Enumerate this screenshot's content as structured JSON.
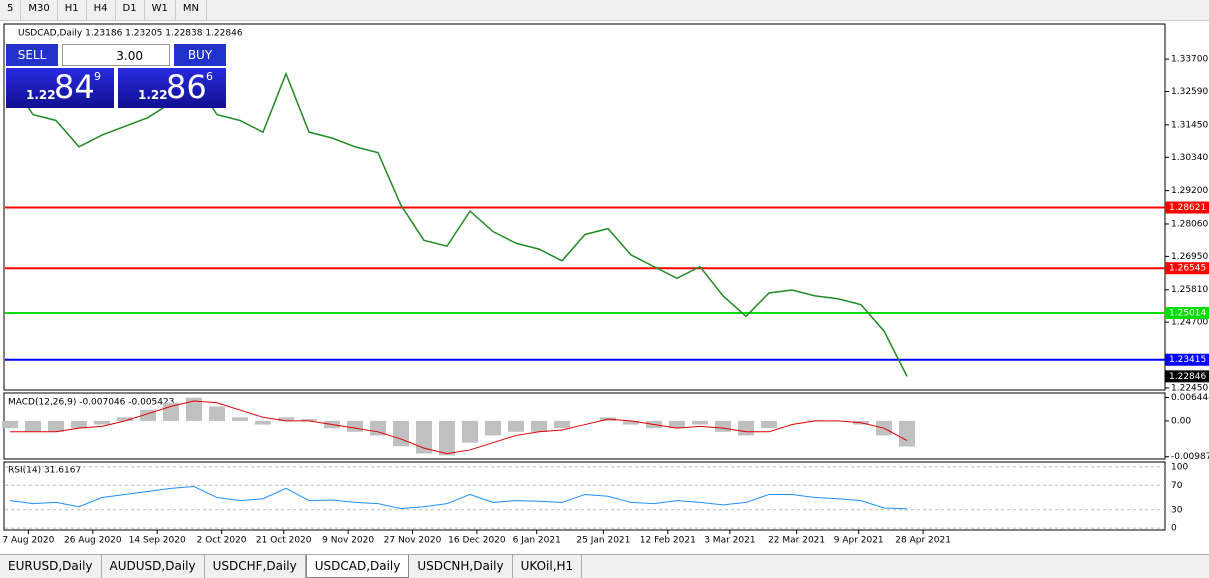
{
  "toolbar": [
    "5",
    "M30",
    "H1",
    "H4",
    "D1",
    "W1",
    "MN"
  ],
  "header": "USDCAD,Daily  1.23186 1.23205 1.22838 1.22846",
  "quote": {
    "sell": "SELL",
    "buy": "BUY",
    "volume": "3.00",
    "sell_big": "1.22",
    "sell_pips": "84",
    "sell_frac": "9",
    "buy_big": "1.22",
    "buy_pips": "86",
    "buy_frac": "6"
  },
  "tabs": [
    "EURUSD,Daily",
    "AUDUSD,Daily",
    "USDCHF,Daily",
    "USDCAD,Daily",
    "USDCNH,Daily",
    "UKOil,H1"
  ],
  "chart_data": {
    "type": "line",
    "series": [
      {
        "name": "USDCAD",
        "color": "#228b22",
        "values": [
          1.33,
          1.318,
          1.316,
          1.307,
          1.311,
          1.314,
          1.317,
          1.322,
          1.33,
          1.318,
          1.316,
          1.312,
          1.332,
          1.312,
          1.31,
          1.307,
          1.305,
          1.287,
          1.275,
          1.273,
          1.285,
          1.278,
          1.274,
          1.272,
          1.268,
          1.277,
          1.279,
          1.27,
          1.266,
          1.262,
          1.266,
          1.256,
          1.249,
          1.257,
          1.258,
          1.256,
          1.255,
          1.253,
          1.244,
          1.22846
        ]
      }
    ],
    "ylim": [
      1.2238,
      1.349
    ],
    "yticks": [
      {
        "value": 1.337,
        "label": "1.33700"
      },
      {
        "value": 1.3259,
        "label": "1.32590"
      },
      {
        "value": 1.3145,
        "label": "1.31450"
      },
      {
        "value": 1.3034,
        "label": "1.30340"
      },
      {
        "value": 1.292,
        "label": "1.29200"
      },
      {
        "value": 1.2806,
        "label": "1.28060"
      },
      {
        "value": 1.2695,
        "label": "1.26950"
      },
      {
        "value": 1.2581,
        "label": "1.25810"
      },
      {
        "value": 1.247,
        "label": "1.24700"
      },
      {
        "value": 1.2245,
        "label": "1.22450"
      }
    ],
    "levels": [
      {
        "value": 1.28621,
        "label": "1.28621",
        "color": "#ff0000"
      },
      {
        "value": 1.26545,
        "label": "1.26545",
        "color": "#ff0000"
      },
      {
        "value": 1.25014,
        "label": "1.25014",
        "color": "#00dd00"
      },
      {
        "value": 1.23415,
        "label": "1.23415",
        "color": "#0000ff"
      },
      {
        "value": 1.22846,
        "label": "1.22846",
        "color": "#000000"
      }
    ],
    "xticks": [
      {
        "value": 0.8,
        "label": "7 Aug 2020"
      },
      {
        "value": 3.6,
        "label": "26 Aug 2020"
      },
      {
        "value": 6.4,
        "label": "14 Sep 2020"
      },
      {
        "value": 9.2,
        "label": "2 Oct 2020"
      },
      {
        "value": 11.9,
        "label": "21 Oct 2020"
      },
      {
        "value": 14.7,
        "label": "9 Nov 2020"
      },
      {
        "value": 17.5,
        "label": "27 Nov 2020"
      },
      {
        "value": 20.3,
        "label": "16 Dec 2020"
      },
      {
        "value": 22.9,
        "label": "6 Jan 2021"
      },
      {
        "value": 25.8,
        "label": "25 Jan 2021"
      },
      {
        "value": 28.6,
        "label": "12 Feb 2021"
      },
      {
        "value": 31.3,
        "label": "3 Mar 2021"
      },
      {
        "value": 34.2,
        "label": "22 Mar 2021"
      },
      {
        "value": 36.9,
        "label": "9 Apr 2021"
      },
      {
        "value": 39.7,
        "label": "28 Apr 2021"
      }
    ],
    "macd": {
      "title": "MACD(12,26,9) -0.007046 -0.005423",
      "histogram": [
        -0.002,
        -0.003,
        -0.003,
        -0.002,
        -0.001,
        0.001,
        0.003,
        0.005,
        0.0064,
        0.004,
        0.001,
        -0.001,
        0.001,
        0.0005,
        -0.002,
        -0.003,
        -0.004,
        -0.007,
        -0.009,
        -0.0095,
        -0.006,
        -0.004,
        -0.003,
        -0.003,
        -0.002,
        0,
        0.001,
        -0.001,
        -0.002,
        -0.002,
        -0.001,
        -0.003,
        -0.004,
        -0.002,
        0,
        0.0002,
        0,
        -0.001,
        -0.004,
        -0.007046
      ],
      "signal": [
        -0.003,
        -0.003,
        -0.003,
        -0.002,
        -0.0015,
        0,
        0.002,
        0.004,
        0.0055,
        0.005,
        0.003,
        0.001,
        0,
        0,
        -0.001,
        -0.002,
        -0.003,
        -0.005,
        -0.0075,
        -0.009,
        -0.008,
        -0.006,
        -0.004,
        -0.003,
        -0.0025,
        -0.001,
        0.0005,
        0,
        -0.001,
        -0.002,
        -0.0015,
        -0.002,
        -0.003,
        -0.003,
        -0.001,
        0,
        0,
        -0.0005,
        -0.002,
        -0.005423
      ],
      "ylim": [
        -0.0105,
        0.0077
      ],
      "yticks": [
        {
          "value": 0.006444,
          "label": "0.006444"
        },
        {
          "value": 0,
          "label": "0.00"
        },
        {
          "value": -0.009871,
          "label": "-0.009871"
        }
      ]
    },
    "rsi": {
      "title": "RSI(14) 31.6167",
      "values": [
        45,
        40,
        42,
        35,
        50,
        55,
        60,
        65,
        68,
        50,
        45,
        48,
        65,
        45,
        46,
        42,
        40,
        32,
        35,
        40,
        55,
        42,
        45,
        44,
        42,
        55,
        52,
        42,
        40,
        45,
        42,
        38,
        42,
        55,
        55,
        50,
        48,
        45,
        33,
        31.6167
      ],
      "ylim": [
        -3,
        108
      ],
      "yticks": [
        100,
        70,
        30,
        0
      ]
    }
  }
}
